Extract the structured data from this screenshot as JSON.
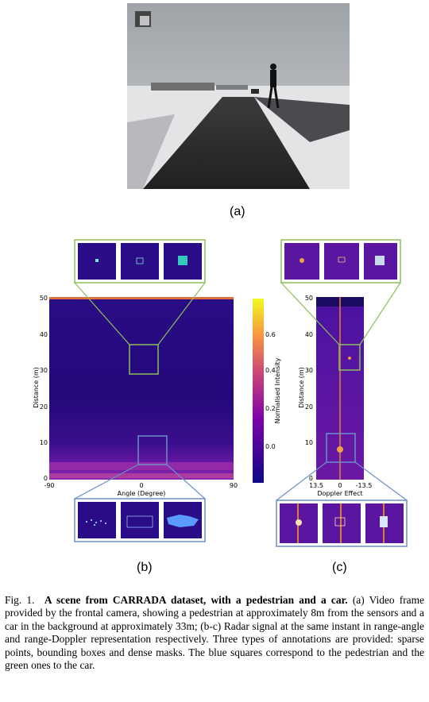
{
  "figure": {
    "label_a": "(a)",
    "label_b": "(b)",
    "label_c": "(c)",
    "caption": {
      "prefix": "Fig. 1.",
      "bold": "A scene from CARRADA dataset, with a pedestrian and a car.",
      "text": "(a) Video frame provided by the frontal camera, showing a pedestrian at approximately 8m from the sensors and a car in the background at approximately 33m; (b-c) Radar signal at the same instant in range-angle and range-Doppler representation respectively. Three types of annotations are provided: sparse points, bounding boxes and dense masks. The blue squares correspond to the pedestrian and the green ones to the car."
    }
  },
  "range_angle": {
    "xlabel": "Angle (Degree)",
    "ylabel": "Distance (m)",
    "xticks": [
      "-90",
      "0",
      "90"
    ],
    "yticks": [
      "0",
      "10",
      "20",
      "30",
      "40",
      "50"
    ],
    "colorbar_label": "Normalised Intensity",
    "colorbar_ticks": [
      "0.0",
      "0.2",
      "0.4",
      "0.6"
    ]
  },
  "range_doppler": {
    "xlabel": "Doppler Effect",
    "ylabel": "Distance (m)",
    "xticks": [
      "13.5",
      "0",
      "-13.5"
    ],
    "yticks": [
      "0",
      "10",
      "20",
      "30",
      "40",
      "50"
    ]
  },
  "colors": {
    "car_box": "#8cbf5a",
    "pedestrian_box": "#6d8fc7",
    "heat_dark": "#1b0a6e",
    "heat_mid": "#5e16a0",
    "heat_hot": "#e07a3a",
    "mask_car": "#38c7c0",
    "mask_ped": "#5a9bff"
  }
}
